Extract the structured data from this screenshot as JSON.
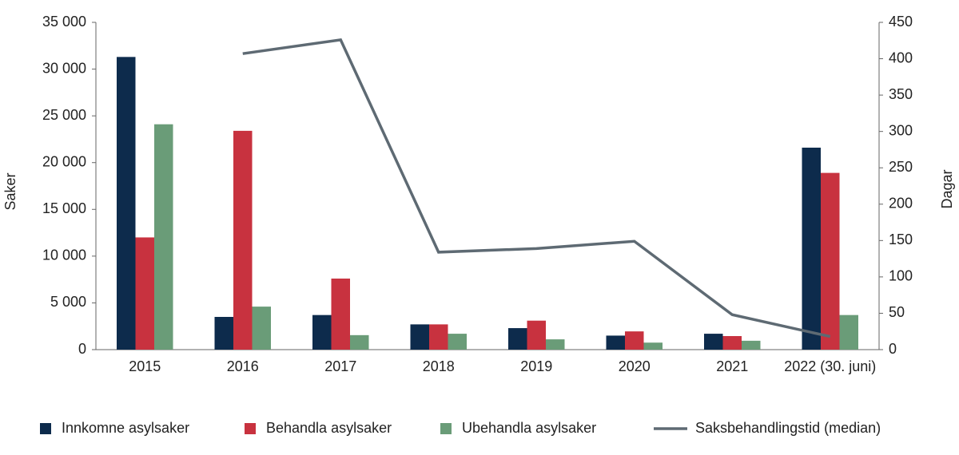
{
  "chart_data": {
    "type": "bar_line",
    "y_label": "Saker",
    "y2_label": "Dagar",
    "categories": [
      "2015",
      "2016",
      "2017",
      "2018",
      "2019",
      "2020",
      "2021",
      "2022 (30. juni)"
    ],
    "series": [
      {
        "name": "Innkomne asylsaker",
        "color": "#0d2b4c",
        "type": "bar",
        "values": [
          31300,
          3500,
          3700,
          2700,
          2300,
          1500,
          1700,
          21600
        ]
      },
      {
        "name": "Behandla asylsaker",
        "color": "#c8323f",
        "type": "bar",
        "values": [
          12000,
          23400,
          7600,
          2700,
          3100,
          1950,
          1450,
          18900
        ]
      },
      {
        "name": "Ubehandla asylsaker",
        "color": "#6a9c78",
        "type": "bar",
        "values": [
          24100,
          4600,
          1550,
          1700,
          1100,
          750,
          950,
          3700
        ]
      },
      {
        "name": "Saksbehandlingstid (median)",
        "color": "#5e6a73",
        "type": "line",
        "axis": "y2",
        "values": [
          null,
          407,
          426,
          134,
          139,
          149,
          48,
          18
        ]
      }
    ],
    "ylim": [
      0,
      35000
    ],
    "yticks": [
      {
        "value": 0,
        "label": "0"
      },
      {
        "value": 5000,
        "label": "5 000"
      },
      {
        "value": 10000,
        "label": "10 000"
      },
      {
        "value": 15000,
        "label": "15 000"
      },
      {
        "value": 20000,
        "label": "20 000"
      },
      {
        "value": 25000,
        "label": "25 000"
      },
      {
        "value": 30000,
        "label": "30 000"
      },
      {
        "value": 35000,
        "label": "35 000"
      }
    ],
    "y2lim": [
      0,
      450
    ],
    "y2ticks": [
      0,
      50,
      100,
      150,
      200,
      250,
      300,
      350,
      400,
      450
    ],
    "grid": false,
    "legend": "bottom"
  }
}
